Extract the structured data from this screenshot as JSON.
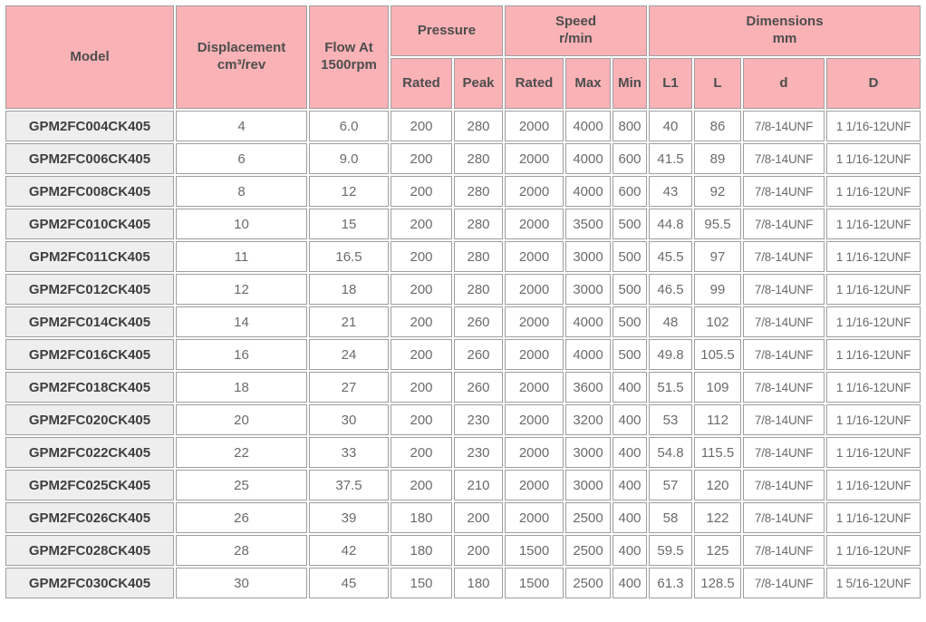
{
  "colors": {
    "header_bg": "#f9b2b6",
    "model_cell_bg": "#eeeeee",
    "border": "#9e9e9e",
    "header_text": "#4d4d4d",
    "data_text": "#6b6b6b"
  },
  "table": {
    "header": {
      "model": "Model",
      "displacement": {
        "line1": "Displacement",
        "line2": "cm³/rev"
      },
      "flow": {
        "line1": "Flow At",
        "line2": "1500rpm"
      },
      "pressure": "Pressure",
      "pressure_sub": [
        "Rated",
        "Peak"
      ],
      "speed": {
        "line1": "Speed",
        "line2": "r/min"
      },
      "speed_sub": [
        "Rated",
        "Max",
        "Min"
      ],
      "dimensions": {
        "line1": "Dimensions",
        "line2": "mm"
      },
      "dimensions_sub": [
        "L1",
        "L",
        "d",
        "D"
      ]
    },
    "rows": [
      [
        "GPM2FC004CK405",
        "4",
        "6.0",
        "200",
        "280",
        "2000",
        "4000",
        "800",
        "40",
        "86",
        "7/8-14UNF",
        "1 1/16-12UNF"
      ],
      [
        "GPM2FC006CK405",
        "6",
        "9.0",
        "200",
        "280",
        "2000",
        "4000",
        "600",
        "41.5",
        "89",
        "7/8-14UNF",
        "1 1/16-12UNF"
      ],
      [
        "GPM2FC008CK405",
        "8",
        "12",
        "200",
        "280",
        "2000",
        "4000",
        "600",
        "43",
        "92",
        "7/8-14UNF",
        "1 1/16-12UNF"
      ],
      [
        "GPM2FC010CK405",
        "10",
        "15",
        "200",
        "280",
        "2000",
        "3500",
        "500",
        "44.8",
        "95.5",
        "7/8-14UNF",
        "1 1/16-12UNF"
      ],
      [
        "GPM2FC011CK405",
        "11",
        "16.5",
        "200",
        "280",
        "2000",
        "3000",
        "500",
        "45.5",
        "97",
        "7/8-14UNF",
        "1 1/16-12UNF"
      ],
      [
        "GPM2FC012CK405",
        "12",
        "18",
        "200",
        "280",
        "2000",
        "3000",
        "500",
        "46.5",
        "99",
        "7/8-14UNF",
        "1 1/16-12UNF"
      ],
      [
        "GPM2FC014CK405",
        "14",
        "21",
        "200",
        "260",
        "2000",
        "4000",
        "500",
        "48",
        "102",
        "7/8-14UNF",
        "1 1/16-12UNF"
      ],
      [
        "GPM2FC016CK405",
        "16",
        "24",
        "200",
        "260",
        "2000",
        "4000",
        "500",
        "49.8",
        "105.5",
        "7/8-14UNF",
        "1 1/16-12UNF"
      ],
      [
        "GPM2FC018CK405",
        "18",
        "27",
        "200",
        "260",
        "2000",
        "3600",
        "400",
        "51.5",
        "109",
        "7/8-14UNF",
        "1 1/16-12UNF"
      ],
      [
        "GPM2FC020CK405",
        "20",
        "30",
        "200",
        "230",
        "2000",
        "3200",
        "400",
        "53",
        "112",
        "7/8-14UNF",
        "1 1/16-12UNF"
      ],
      [
        "GPM2FC022CK405",
        "22",
        "33",
        "200",
        "230",
        "2000",
        "3000",
        "400",
        "54.8",
        "115.5",
        "7/8-14UNF",
        "1 1/16-12UNF"
      ],
      [
        "GPM2FC025CK405",
        "25",
        "37.5",
        "200",
        "210",
        "2000",
        "3000",
        "400",
        "57",
        "120",
        "7/8-14UNF",
        "1 1/16-12UNF"
      ],
      [
        "GPM2FC026CK405",
        "26",
        "39",
        "180",
        "200",
        "2000",
        "2500",
        "400",
        "58",
        "122",
        "7/8-14UNF",
        "1 1/16-12UNF"
      ],
      [
        "GPM2FC028CK405",
        "28",
        "42",
        "180",
        "200",
        "1500",
        "2500",
        "400",
        "59.5",
        "125",
        "7/8-14UNF",
        "1 1/16-12UNF"
      ],
      [
        "GPM2FC030CK405",
        "30",
        "45",
        "150",
        "180",
        "1500",
        "2500",
        "400",
        "61.3",
        "128.5",
        "7/8-14UNF",
        "1 5/16-12UNF"
      ]
    ]
  }
}
